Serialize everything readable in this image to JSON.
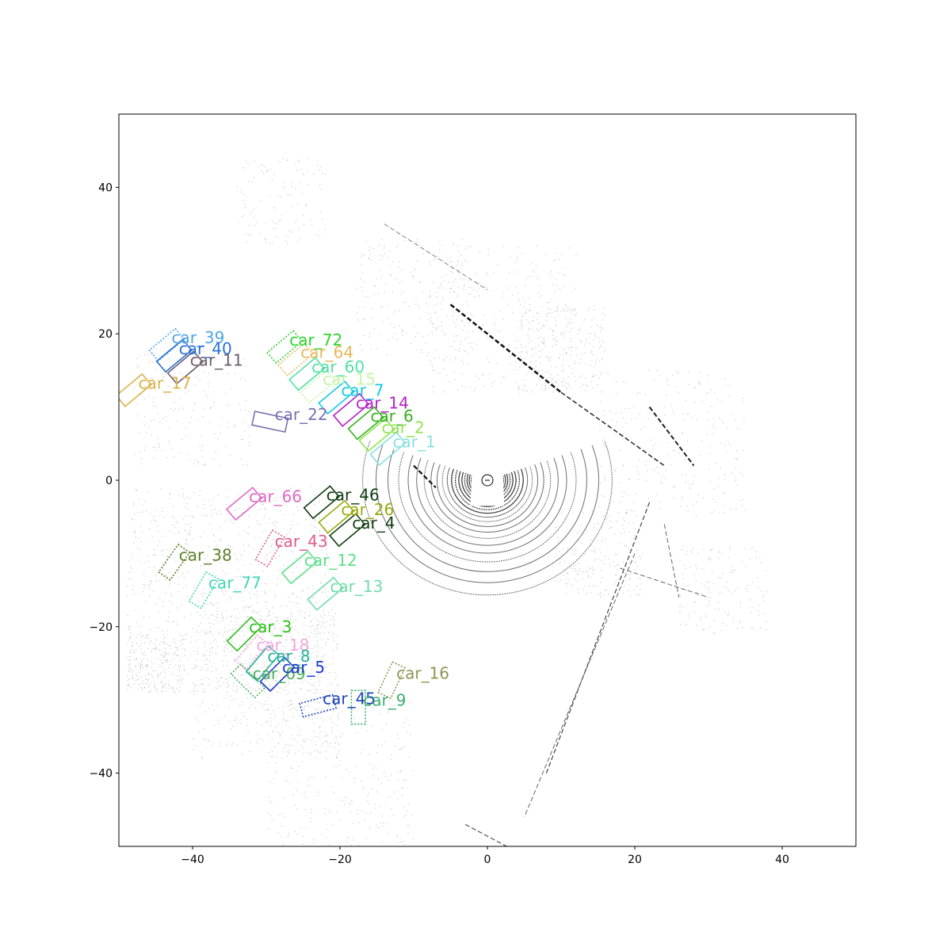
{
  "chart_data": {
    "type": "scatter",
    "title": "",
    "xlabel": "",
    "ylabel": "",
    "xlim": [
      -50,
      50
    ],
    "ylim": [
      -50,
      50
    ],
    "x_ticks": [
      -40,
      -20,
      0,
      20,
      40
    ],
    "y_ticks": [
      -40,
      -20,
      0,
      20,
      40
    ],
    "x_tick_labels": [
      "−40",
      "−20",
      "0",
      "20",
      "40"
    ],
    "y_tick_labels": [
      "−40",
      "−20",
      "0",
      "20",
      "40"
    ],
    "grid": false,
    "background": "lidar point cloud (bird's-eye view)",
    "ego": {
      "x": 0,
      "y": 0
    },
    "boxes": [
      {
        "label": "car_39",
        "x": -43.5,
        "y": 18.5,
        "length": 4.6,
        "width": 1.9,
        "heading_deg": 40,
        "color": "#4da6e6",
        "style": "dotted"
      },
      {
        "label": "car_40",
        "x": -42.5,
        "y": 17.0,
        "length": 4.6,
        "width": 1.9,
        "heading_deg": 40,
        "color": "#2a6fd6",
        "style": "solid"
      },
      {
        "label": "car_11",
        "x": -41.0,
        "y": 15.4,
        "length": 4.6,
        "width": 1.9,
        "heading_deg": 40,
        "color": "#6f5e6e",
        "style": "solid"
      },
      {
        "label": "car_17",
        "x": -48.0,
        "y": 12.3,
        "length": 4.6,
        "width": 1.9,
        "heading_deg": 40,
        "color": "#d8b448",
        "style": "solid"
      },
      {
        "label": "car_72",
        "x": -27.5,
        "y": 18.2,
        "length": 4.6,
        "width": 1.9,
        "heading_deg": 40,
        "color": "#2cd42c",
        "style": "dotted"
      },
      {
        "label": "car_64",
        "x": -26.0,
        "y": 16.5,
        "length": 4.6,
        "width": 1.9,
        "heading_deg": 40,
        "color": "#e6b85a",
        "style": "dotted"
      },
      {
        "label": "car_60",
        "x": -24.5,
        "y": 14.5,
        "length": 4.6,
        "width": 1.9,
        "heading_deg": 40,
        "color": "#52dfa4",
        "style": "solid"
      },
      {
        "label": "car_15",
        "x": -23.0,
        "y": 12.8,
        "length": 4.6,
        "width": 1.9,
        "heading_deg": 40,
        "color": "#c4f5a6",
        "style": "dotted"
      },
      {
        "label": "car_7",
        "x": -20.5,
        "y": 11.3,
        "length": 4.6,
        "width": 1.9,
        "heading_deg": 40,
        "color": "#15c8e6",
        "style": "solid"
      },
      {
        "label": "car_14",
        "x": -18.5,
        "y": 9.6,
        "length": 4.6,
        "width": 1.9,
        "heading_deg": 40,
        "color": "#b321c6",
        "style": "solid"
      },
      {
        "label": "car_6",
        "x": -16.5,
        "y": 7.8,
        "length": 4.6,
        "width": 1.9,
        "heading_deg": 40,
        "color": "#38b020",
        "style": "solid"
      },
      {
        "label": "car_2",
        "x": -15.0,
        "y": 6.2,
        "length": 4.6,
        "width": 1.9,
        "heading_deg": 40,
        "color": "#8fe651",
        "style": "solid"
      },
      {
        "label": "car_1",
        "x": -13.5,
        "y": 4.3,
        "length": 4.6,
        "width": 1.9,
        "heading_deg": 40,
        "color": "#88e0e0",
        "style": "solid"
      },
      {
        "label": "car_22",
        "x": -29.5,
        "y": 8.0,
        "length": 4.6,
        "width": 1.9,
        "heading_deg": -12,
        "color": "#7b6fb0",
        "style": "solid"
      },
      {
        "label": "car_66",
        "x": -33.0,
        "y": -3.2,
        "length": 4.6,
        "width": 1.9,
        "heading_deg": 40,
        "color": "#de6ac4",
        "style": "solid"
      },
      {
        "label": "car_46",
        "x": -22.5,
        "y": -3.0,
        "length": 4.6,
        "width": 1.9,
        "heading_deg": 40,
        "color": "#0f3d12",
        "style": "solid"
      },
      {
        "label": "car_26",
        "x": -20.5,
        "y": -5.0,
        "length": 4.6,
        "width": 1.9,
        "heading_deg": 40,
        "color": "#9aaa10",
        "style": "solid"
      },
      {
        "label": "car_4",
        "x": -19.0,
        "y": -6.8,
        "length": 4.6,
        "width": 1.9,
        "heading_deg": 40,
        "color": "#123e12",
        "style": "solid"
      },
      {
        "label": "car_43",
        "x": -29.5,
        "y": -9.3,
        "length": 4.6,
        "width": 1.9,
        "heading_deg": 60,
        "color": "#de5a90",
        "style": "dotted"
      },
      {
        "label": "car_38",
        "x": -42.5,
        "y": -11.2,
        "length": 4.6,
        "width": 1.9,
        "heading_deg": 55,
        "color": "#5d7f28",
        "style": "dotted"
      },
      {
        "label": "car_12",
        "x": -25.5,
        "y": -11.9,
        "length": 4.6,
        "width": 1.9,
        "heading_deg": 40,
        "color": "#5de08a",
        "style": "solid"
      },
      {
        "label": "car_77",
        "x": -38.5,
        "y": -15.0,
        "length": 4.6,
        "width": 1.9,
        "heading_deg": 60,
        "color": "#3ed6b6",
        "style": "dotted"
      },
      {
        "label": "car_13",
        "x": -22.0,
        "y": -15.5,
        "length": 4.6,
        "width": 1.9,
        "heading_deg": 40,
        "color": "#70dcaa",
        "style": "solid"
      },
      {
        "label": "car_3",
        "x": -33.0,
        "y": -21.0,
        "length": 4.6,
        "width": 1.9,
        "heading_deg": 45,
        "color": "#2bc018",
        "style": "solid"
      },
      {
        "label": "car_18",
        "x": -32.0,
        "y": -23.5,
        "length": 4.6,
        "width": 1.9,
        "heading_deg": 50,
        "color": "#f2a6df",
        "style": "dotted"
      },
      {
        "label": "car_8",
        "x": -30.5,
        "y": -25.0,
        "length": 4.6,
        "width": 1.9,
        "heading_deg": 50,
        "color": "#22b29a",
        "style": "solid"
      },
      {
        "label": "car_69",
        "x": -32.5,
        "y": -27.4,
        "length": 4.6,
        "width": 1.9,
        "heading_deg": -45,
        "color": "#4cad5c",
        "style": "dotted"
      },
      {
        "label": "car_5",
        "x": -28.5,
        "y": -26.5,
        "length": 4.6,
        "width": 1.9,
        "heading_deg": 45,
        "color": "#1b3bd0",
        "style": "solid"
      },
      {
        "label": "car_16",
        "x": -13.0,
        "y": -27.3,
        "length": 4.6,
        "width": 1.9,
        "heading_deg": 65,
        "color": "#8e9654",
        "style": "dotted"
      },
      {
        "label": "car_45",
        "x": -23.0,
        "y": -30.8,
        "length": 4.6,
        "width": 1.9,
        "heading_deg": 15,
        "color": "#1d44b8",
        "style": "dotted"
      },
      {
        "label": "car_9",
        "x": -17.5,
        "y": -31.0,
        "length": 4.6,
        "width": 1.9,
        "heading_deg": 90,
        "color": "#3fae6f",
        "style": "dotted"
      }
    ]
  }
}
